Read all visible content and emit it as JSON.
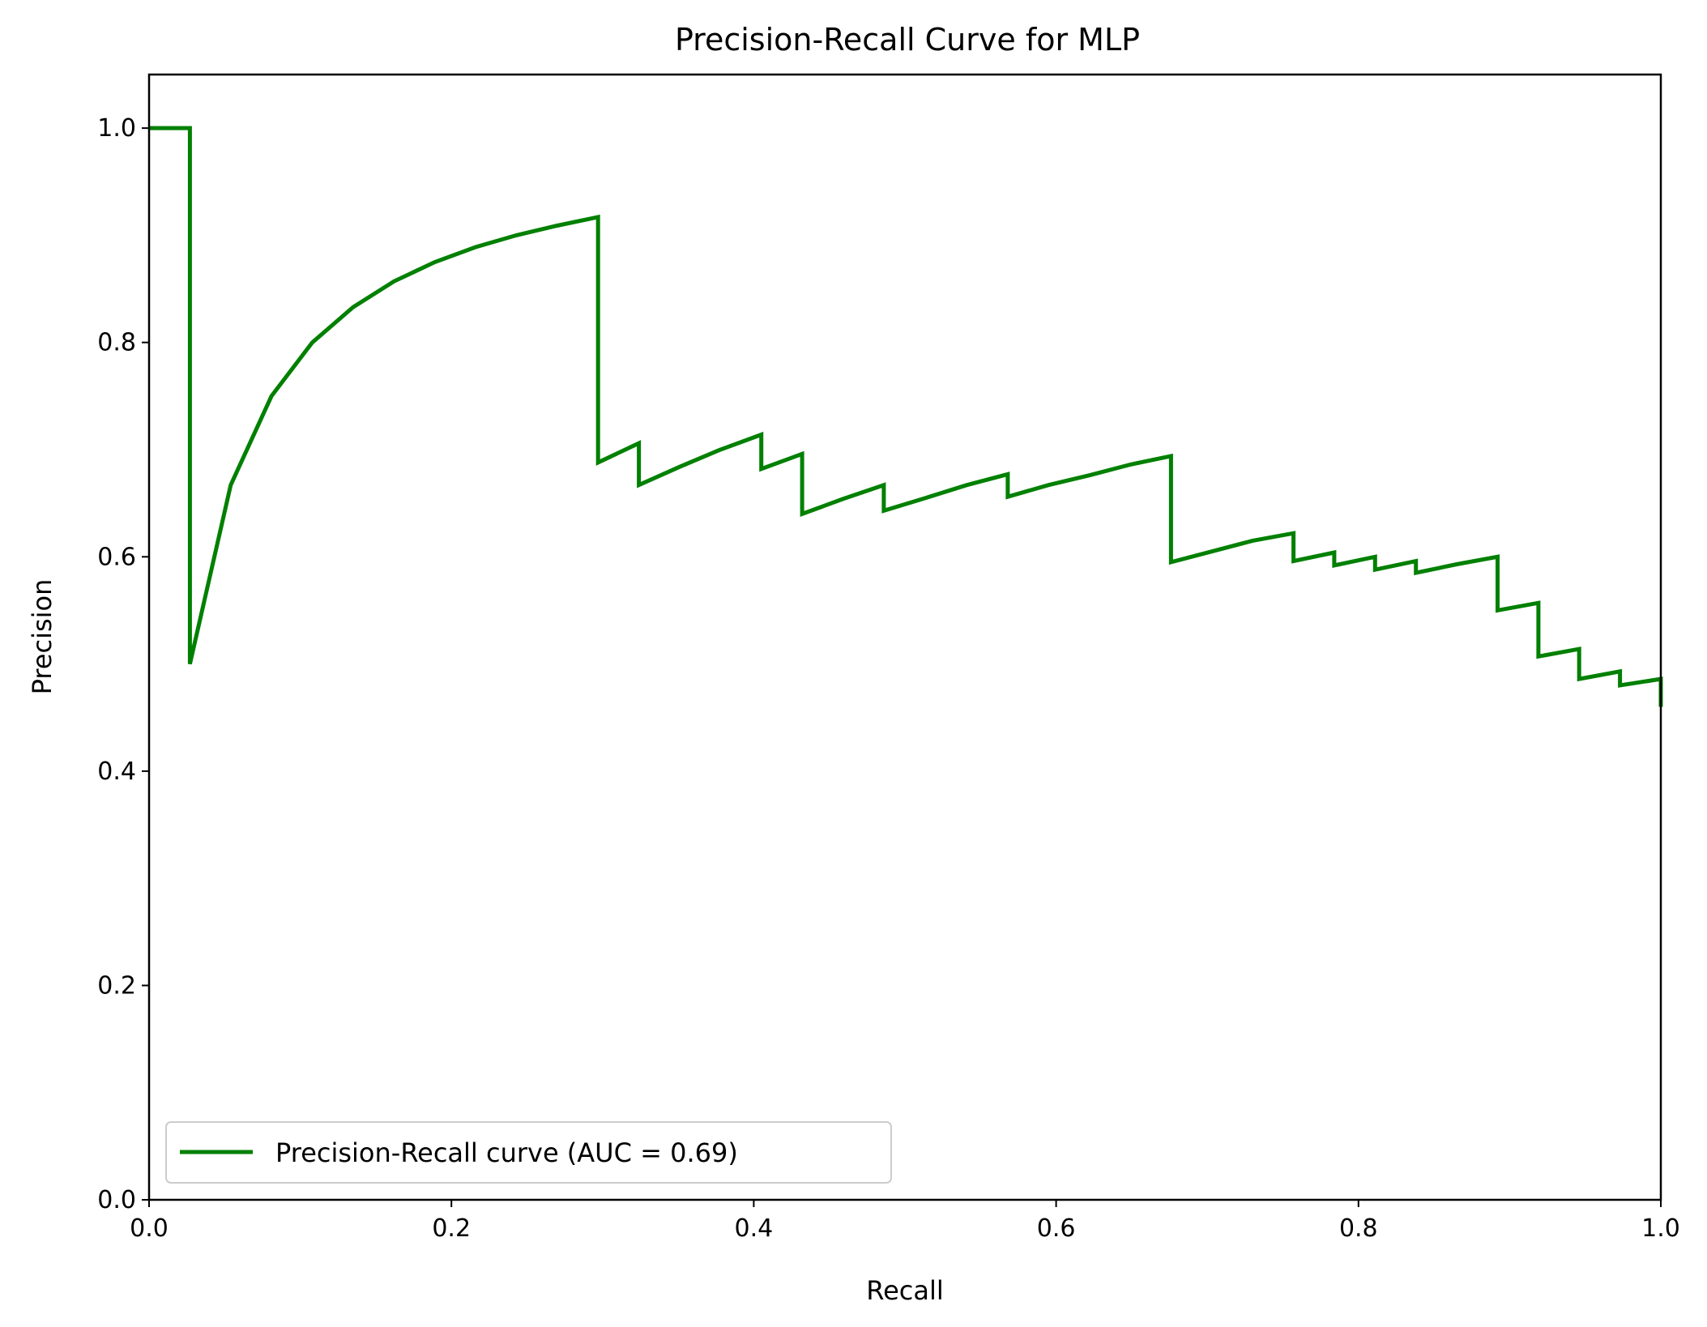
{
  "chart_data": {
    "type": "line",
    "title": "Precision-Recall Curve for MLP",
    "xlabel": "Recall",
    "ylabel": "Precision",
    "xlim": [
      0.0,
      1.0
    ],
    "ylim": [
      0.0,
      1.05
    ],
    "xticks": [
      "0.0",
      "0.2",
      "0.4",
      "0.6",
      "0.8",
      "1.0"
    ],
    "yticks": [
      "0.0",
      "0.2",
      "0.4",
      "0.6",
      "0.8",
      "1.0"
    ],
    "grid": false,
    "legend_position": "lower-left",
    "series": [
      {
        "name": "Precision-Recall curve (AUC = 0.69)",
        "color": "#008000",
        "x": [
          0.0,
          0.027,
          0.027,
          0.054,
          0.081,
          0.108,
          0.135,
          0.162,
          0.189,
          0.216,
          0.243,
          0.27,
          0.297,
          0.297,
          0.324,
          0.324,
          0.351,
          0.378,
          0.405,
          0.405,
          0.432,
          0.432,
          0.459,
          0.486,
          0.486,
          0.514,
          0.541,
          0.568,
          0.568,
          0.595,
          0.622,
          0.649,
          0.676,
          0.676,
          0.703,
          0.73,
          0.757,
          0.757,
          0.784,
          0.784,
          0.811,
          0.811,
          0.838,
          0.838,
          0.865,
          0.892,
          0.892,
          0.919,
          0.919,
          0.946,
          0.946,
          0.973,
          0.973,
          1.0,
          1.0
        ],
        "y": [
          1.0,
          1.0,
          0.5,
          0.667,
          0.75,
          0.8,
          0.833,
          0.857,
          0.875,
          0.889,
          0.9,
          0.909,
          0.917,
          0.688,
          0.706,
          0.667,
          0.684,
          0.7,
          0.714,
          0.682,
          0.696,
          0.64,
          0.654,
          0.667,
          0.643,
          0.655,
          0.667,
          0.677,
          0.656,
          0.667,
          0.676,
          0.686,
          0.694,
          0.595,
          0.605,
          0.615,
          0.622,
          0.596,
          0.604,
          0.592,
          0.6,
          0.588,
          0.596,
          0.585,
          0.593,
          0.6,
          0.55,
          0.557,
          0.507,
          0.514,
          0.486,
          0.493,
          0.48,
          0.486,
          0.46
        ]
      }
    ]
  }
}
